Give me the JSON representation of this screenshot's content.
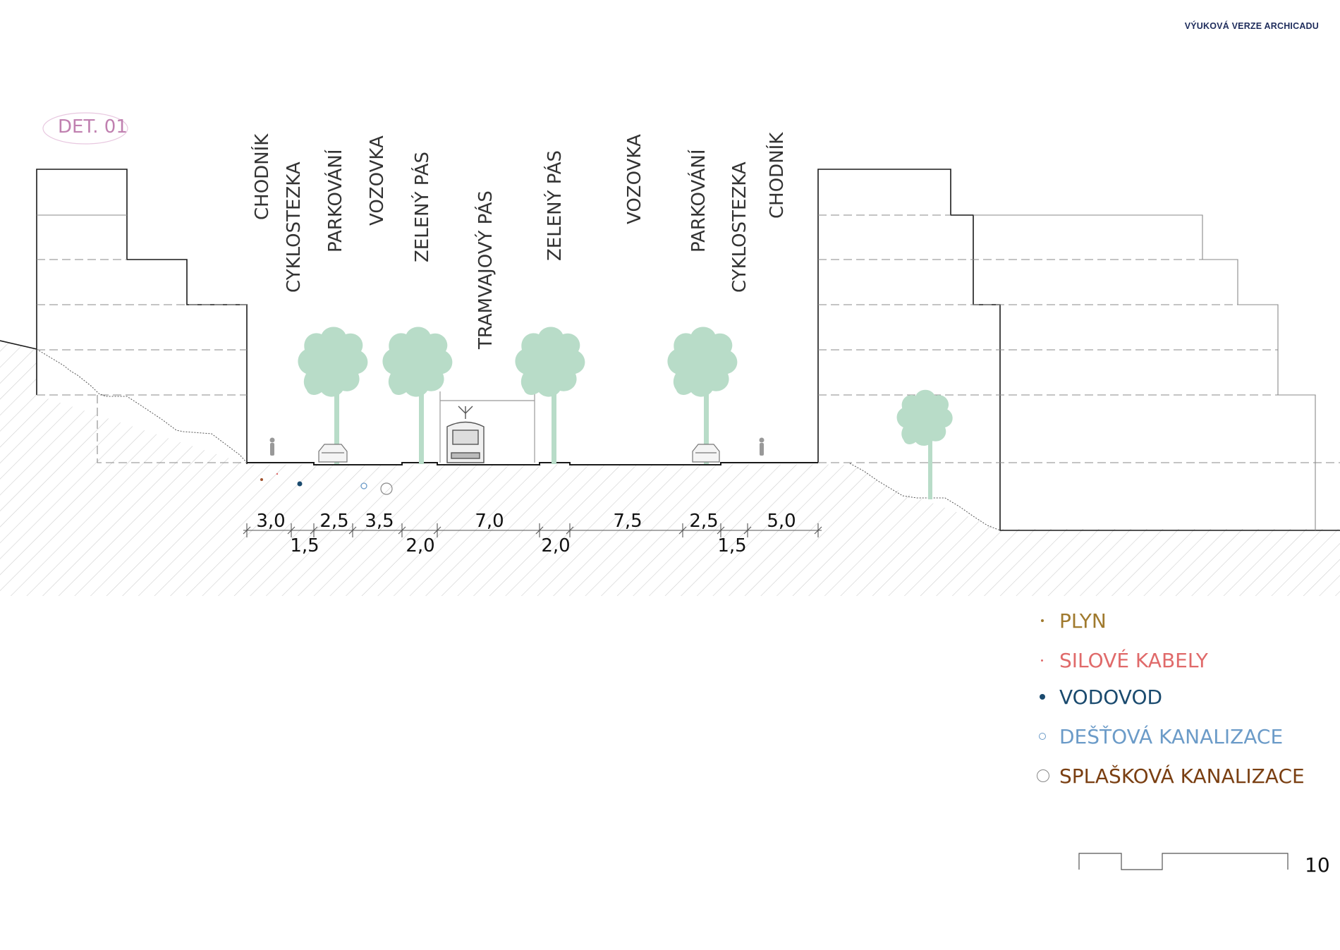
{
  "header": {
    "watermark": "VÝUKOVÁ VERZE ARCHICADU"
  },
  "detail_label": "DET. 01",
  "street_zones": [
    "CHODNÍK",
    "CYKLOSTEZKA",
    "PARKOVÁNÍ",
    "VOZOVKA",
    "ZELENÝ PÁS",
    "TRAMVAJOVÝ PÁS",
    "ZELENÝ PÁS",
    "VOZOVKA",
    "PARKOVÁNÍ",
    "CYKLOSTEZKA",
    "CHODNÍK"
  ],
  "dimensions_top": [
    "3,0",
    "2,5",
    "3,5",
    "7,0",
    "7,5",
    "2,5",
    "5,0"
  ],
  "dimensions_bottom": [
    "1,5",
    "2,0",
    "2,0",
    "1,5"
  ],
  "legend": [
    {
      "label": "PLYN",
      "color": "#a07a2e",
      "symbol": "small-dot"
    },
    {
      "label": "SILOVÉ KABELY",
      "color": "#e06a6a",
      "symbol": "tiny-dot"
    },
    {
      "label": "VODOVOD",
      "color": "#1a4a6e",
      "symbol": "filled-dot"
    },
    {
      "label": "DEŠŤOVÁ KANALIZACE",
      "color": "#6b9bc8",
      "symbol": "small-ring"
    },
    {
      "label": "SPLAŠKOVÁ KANALIZACE",
      "color": "#7a3f12",
      "symbol": "large-ring"
    }
  ],
  "colors": {
    "tree": "#b8dcc8",
    "linework": "#1a1a1a",
    "hatch": "#c8c8c8",
    "detail_label": "#c080b0"
  },
  "page_number": "10"
}
